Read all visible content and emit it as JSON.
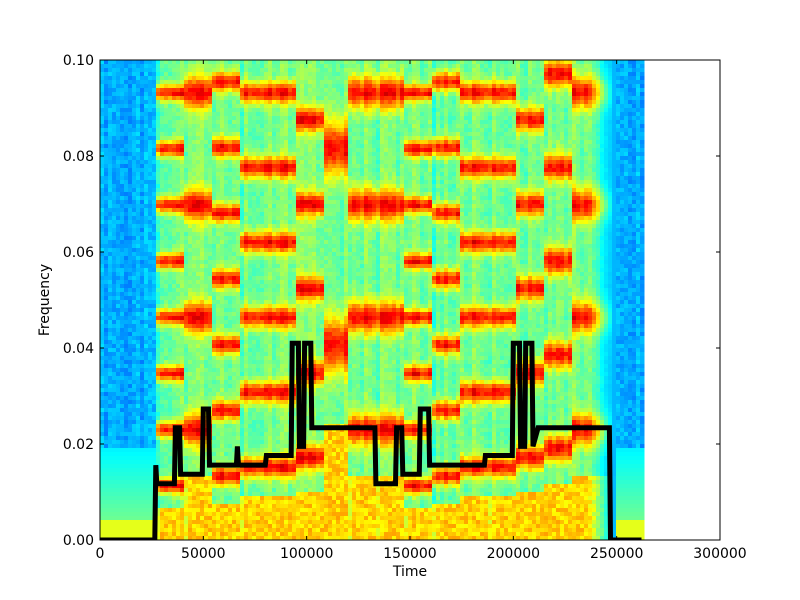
{
  "chart_data": {
    "type": "heatmap",
    "subtype": "spectrogram_with_line_overlay",
    "title": "",
    "xlabel": "Time",
    "ylabel": "Frequency",
    "xlim": [
      0,
      300000
    ],
    "ylim": [
      0.0,
      0.1
    ],
    "x_ticks": [
      "0",
      "50000",
      "100000",
      "150000",
      "200000",
      "250000",
      "300000"
    ],
    "x_tick_values": [
      0,
      50000,
      100000,
      150000,
      200000,
      250000,
      300000
    ],
    "y_ticks": [
      "0.00",
      "0.02",
      "0.04",
      "0.06",
      "0.08",
      "0.10"
    ],
    "y_tick_values": [
      0.0,
      0.02,
      0.04,
      0.06,
      0.08,
      0.1
    ],
    "grid": false,
    "legend": null,
    "colormap": "jet",
    "spectrogram": {
      "x_extent": [
        0,
        262000
      ],
      "y_extent": [
        0.0,
        0.1
      ],
      "silent_regions": [
        [
          0,
          27000
        ],
        [
          248000,
          262000
        ]
      ],
      "note_segments_time": [
        [
          27000,
          40000
        ],
        [
          40000,
          53000
        ],
        [
          53000,
          67000
        ],
        [
          67000,
          80000
        ],
        [
          80000,
          93000
        ],
        [
          93000,
          107000
        ],
        [
          107000,
          120000
        ],
        [
          120000,
          133000
        ],
        [
          133000,
          147000
        ],
        [
          147000,
          160000
        ],
        [
          160000,
          173000
        ],
        [
          173000,
          187000
        ],
        [
          187000,
          200000
        ],
        [
          200000,
          213000
        ],
        [
          213000,
          227000
        ],
        [
          227000,
          248000
        ]
      ]
    },
    "series": [
      {
        "name": "pitch track",
        "color": "#000000",
        "line_width": 4,
        "x": [
          0,
          26500,
          27000,
          27500,
          36000,
          36500,
          38500,
          39000,
          49500,
          50000,
          52500,
          53000,
          66000,
          66500,
          67000,
          80000,
          80500,
          92500,
          93000,
          96000,
          96500,
          98500,
          99000,
          102000,
          102500,
          106000,
          106500,
          133000,
          133500,
          143000,
          143500,
          146000,
          146500,
          154500,
          155000,
          159000,
          159500,
          186000,
          186500,
          199500,
          200000,
          203000,
          203500,
          205500,
          206000,
          209000,
          209500,
          212000,
          212500,
          246500,
          247000,
          262000
        ],
        "y": [
          0.0,
          0.0,
          0.0156,
          0.0117,
          0.0117,
          0.0234,
          0.0234,
          0.0137,
          0.0137,
          0.0273,
          0.0273,
          0.0156,
          0.0156,
          0.0195,
          0.0156,
          0.0156,
          0.0176,
          0.0176,
          0.041,
          0.041,
          0.0195,
          0.0195,
          0.041,
          0.041,
          0.0234,
          0.0234,
          0.0234,
          0.0234,
          0.0117,
          0.0117,
          0.0234,
          0.0234,
          0.0137,
          0.0137,
          0.0273,
          0.0273,
          0.0156,
          0.0156,
          0.0176,
          0.0176,
          0.041,
          0.041,
          0.0195,
          0.0195,
          0.041,
          0.041,
          0.0195,
          0.0234,
          0.0234,
          0.0234,
          0.0,
          0.0
        ]
      }
    ]
  }
}
